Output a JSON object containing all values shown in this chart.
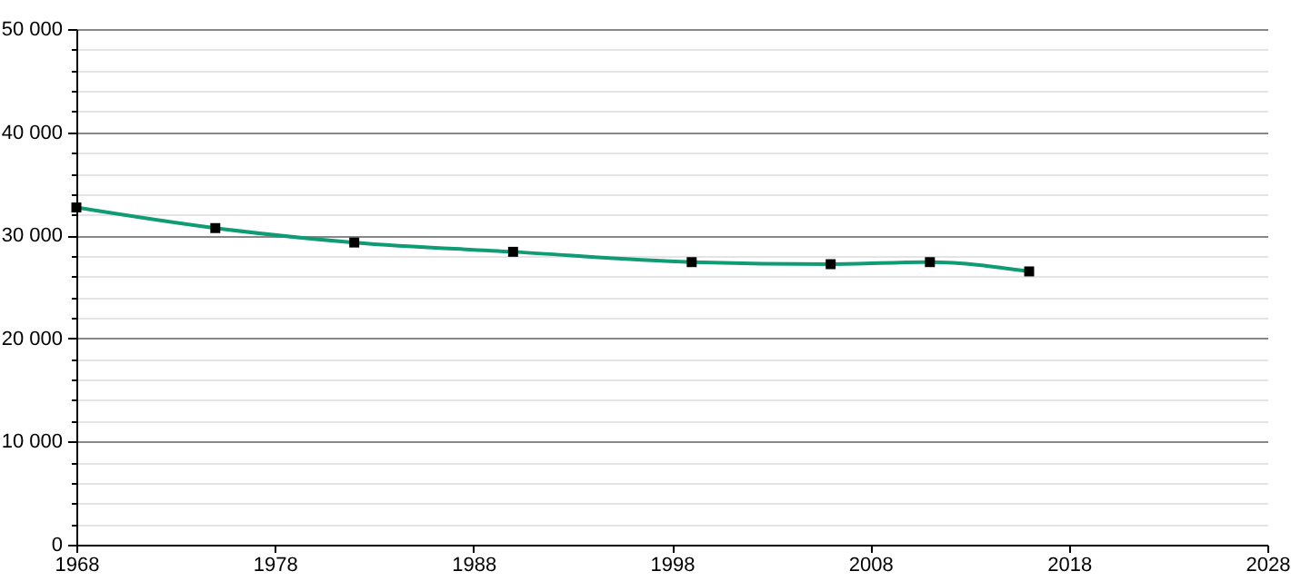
{
  "chart_data": {
    "type": "line",
    "x": [
      1968,
      1975,
      1982,
      1990,
      1999,
      2006,
      2011,
      2016
    ],
    "series": [
      {
        "color": "#0f9b74",
        "values": [
          32700,
          30700,
          29300,
          28400,
          27400,
          27200,
          27400,
          26500
        ]
      }
    ],
    "xlim": [
      1968,
      2028
    ],
    "xticks": [
      1968,
      1978,
      1988,
      1998,
      2008,
      2018,
      2028
    ],
    "ylim": [
      0,
      50000
    ],
    "yticks": [
      {
        "value": 0,
        "label": "0"
      },
      {
        "value": 2000,
        "label": null
      },
      {
        "value": 4000,
        "label": null
      },
      {
        "value": 6000,
        "label": null
      },
      {
        "value": 8000,
        "label": null
      },
      {
        "value": 10000,
        "label": "10 000"
      },
      {
        "value": 12000,
        "label": null
      },
      {
        "value": 14000,
        "label": null
      },
      {
        "value": 16000,
        "label": null
      },
      {
        "value": 18000,
        "label": null
      },
      {
        "value": 20000,
        "label": "20 000"
      },
      {
        "value": 22000,
        "label": null
      },
      {
        "value": 24000,
        "label": null
      },
      {
        "value": 26000,
        "label": null
      },
      {
        "value": 28000,
        "label": null
      },
      {
        "value": 30000,
        "label": "30 000"
      },
      {
        "value": 32000,
        "label": null
      },
      {
        "value": 34000,
        "label": null
      },
      {
        "value": 36000,
        "label": null
      },
      {
        "value": 38000,
        "label": null
      },
      {
        "value": 40000,
        "label": "40 000"
      },
      {
        "value": 42000,
        "label": null
      },
      {
        "value": 44000,
        "label": null
      },
      {
        "value": 46000,
        "label": null
      },
      {
        "value": 48000,
        "label": null
      },
      {
        "value": 50000,
        "label": "50 000"
      }
    ],
    "grid": "y",
    "marker": "square",
    "line_style": "solid"
  }
}
